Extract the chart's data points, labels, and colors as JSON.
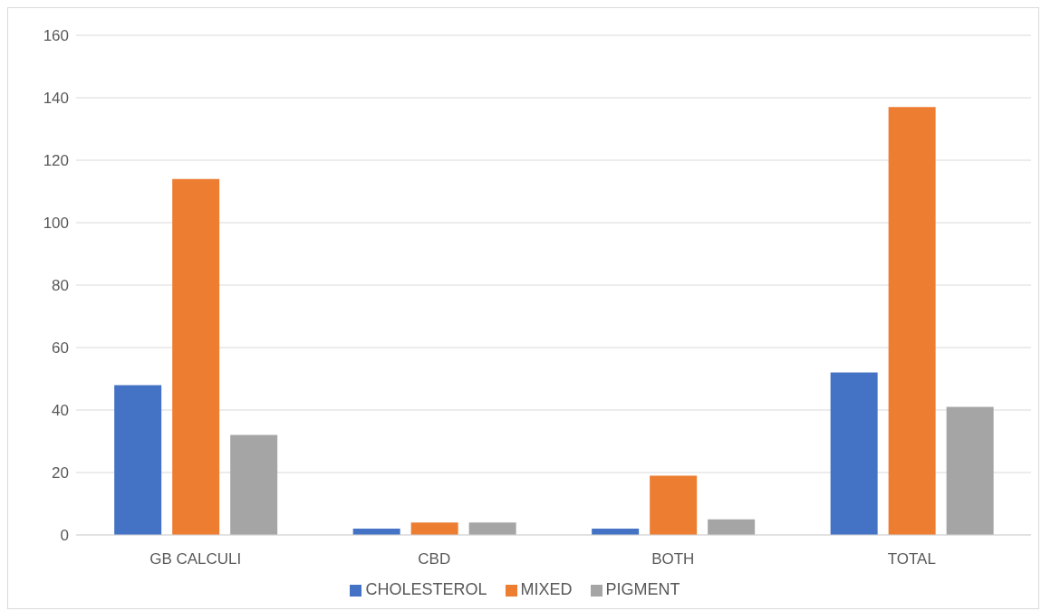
{
  "chart_data": {
    "type": "bar",
    "categories": [
      "GB CALCULI",
      "CBD",
      "BOTH",
      "TOTAL"
    ],
    "series": [
      {
        "name": "CHOLESTEROL",
        "color": "#4472c4",
        "values": [
          48,
          2,
          2,
          52
        ]
      },
      {
        "name": "MIXED",
        "color": "#ed7d31",
        "values": [
          114,
          4,
          19,
          137
        ]
      },
      {
        "name": "PIGMENT",
        "color": "#a5a5a5",
        "values": [
          32,
          4,
          5,
          41
        ]
      }
    ],
    "ylim": [
      0,
      160
    ],
    "yticks": [
      0,
      20,
      40,
      60,
      80,
      100,
      120,
      140,
      160
    ],
    "grid": "y",
    "legend": "bottom"
  }
}
